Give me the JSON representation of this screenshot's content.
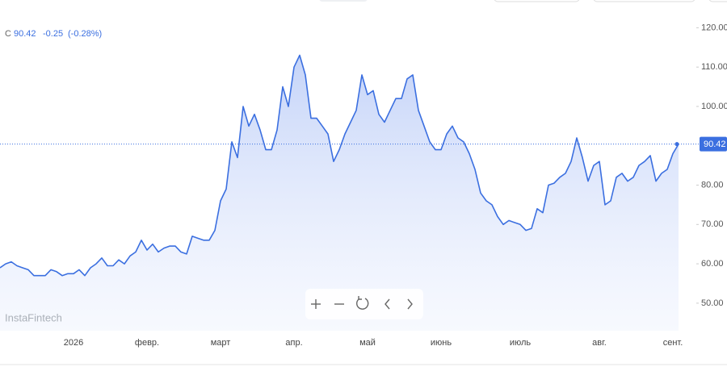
{
  "header": {
    "symbol": "С",
    "change": "-0.25",
    "change_percent": "(-0.28%)",
    "watermark": "InstaFintech"
  },
  "chart_data": {
    "type": "line",
    "color": "#3b6fe0",
    "categories": [
      null,
      null,
      null,
      null,
      null,
      null,
      null,
      null,
      null,
      null,
      null,
      null,
      null,
      "2026",
      null,
      null,
      null,
      null,
      null,
      null,
      null,
      null,
      null,
      null,
      null,
      null,
      "февр.",
      null,
      null,
      null,
      null,
      null,
      null,
      null,
      null,
      null,
      null,
      null,
      null,
      "март",
      null,
      null,
      null,
      null,
      null,
      null,
      null,
      null,
      null,
      null,
      null,
      null,
      "апр.",
      null,
      null,
      null,
      null,
      null,
      null,
      null,
      null,
      null,
      null,
      null,
      null,
      "май",
      null,
      null,
      null,
      null,
      null,
      null,
      null,
      null,
      null,
      null,
      null,
      null,
      "июнь",
      null,
      null,
      null,
      null,
      null,
      null,
      null,
      null,
      null,
      null,
      null,
      null,
      null,
      "июль",
      null,
      null,
      null,
      null,
      null,
      null,
      null,
      null,
      null,
      null,
      null,
      null,
      null,
      "авг.",
      null,
      null,
      null,
      null,
      null,
      null,
      null,
      null,
      null,
      null,
      null,
      null,
      "сент.",
      null
    ],
    "values": [
      59,
      60,
      60.5,
      59.5,
      59,
      58.5,
      57,
      57,
      57,
      58.5,
      58,
      57,
      57.5,
      57.5,
      58.5,
      57,
      59,
      60,
      61.5,
      59.5,
      59.5,
      61,
      60,
      62,
      63,
      66,
      63.5,
      65,
      63,
      64,
      64.5,
      64.5,
      63,
      62.5,
      67,
      66.5,
      66,
      66,
      68.5,
      76,
      79,
      91,
      87,
      100,
      95,
      98,
      94,
      89,
      89,
      94,
      105,
      100,
      110,
      113,
      108,
      97,
      97,
      95,
      93,
      86,
      89,
      93,
      96,
      99,
      108,
      103,
      104,
      98,
      96,
      99,
      102,
      102,
      107,
      108,
      99,
      95,
      91,
      89,
      89,
      93,
      95,
      92,
      91,
      88,
      84,
      78,
      76,
      75,
      72,
      70,
      71,
      70.5,
      70,
      68.5,
      69,
      74,
      73,
      80,
      80.5,
      82,
      83,
      86,
      92,
      87,
      81,
      85,
      86,
      75,
      76,
      82,
      83,
      81,
      82,
      85,
      86,
      87.5,
      81,
      83,
      84,
      88,
      90.42
    ],
    "ylim": [
      43,
      125
    ],
    "yticks": [
      {
        "value": 50,
        "label": "50.00"
      },
      {
        "value": 60,
        "label": "60.00"
      },
      {
        "value": 70,
        "label": "70.00"
      },
      {
        "value": 80,
        "label": "80.00"
      },
      {
        "value": 100,
        "label": "100.00"
      },
      {
        "value": 110,
        "label": "110.00"
      },
      {
        "value": 120,
        "label": "120.00"
      }
    ]
  }
}
